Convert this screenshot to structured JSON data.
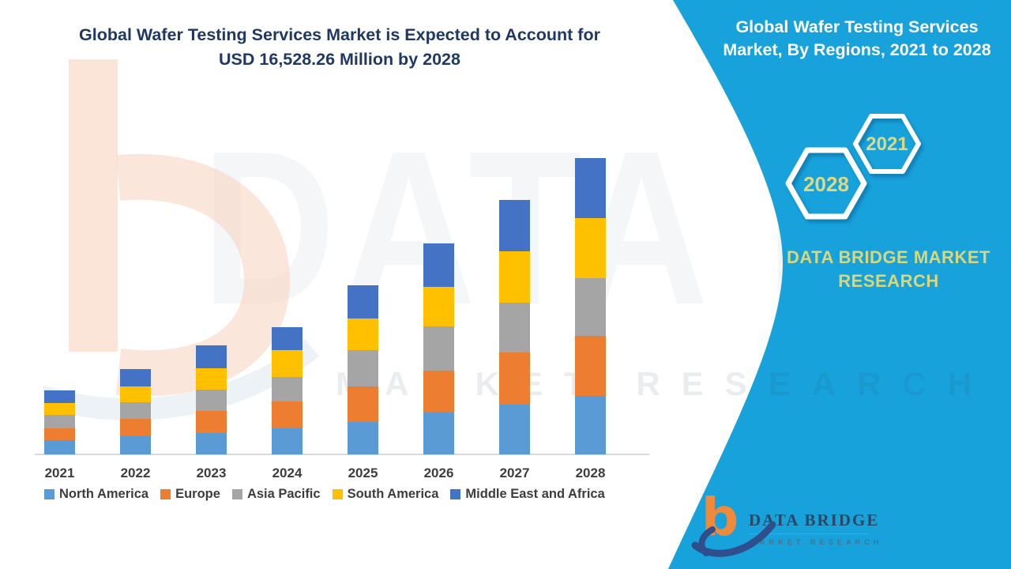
{
  "left_section": {
    "title_line1": "Global Wafer Testing Services  Market is Expected to Account for",
    "title_line2": "USD 16,528.26 Million by 2028"
  },
  "chart_data": {
    "type": "bar",
    "stacked": true,
    "title": "Global Wafer Testing Services Market, By Regions, 2021 to 2028",
    "xlabel": "",
    "ylabel": "",
    "grid": false,
    "legend_position": "bottom",
    "categories": [
      "2021",
      "2022",
      "2023",
      "2024",
      "2025",
      "2026",
      "2027",
      "2028"
    ],
    "series": [
      {
        "name": "North America",
        "color": "#5B9BD5",
        "values": [
          800,
          1020,
          1200,
          1460,
          1815,
          2350,
          2790,
          3280
        ]
      },
      {
        "name": "Europe",
        "color": "#ED7D31",
        "values": [
          660,
          975,
          1240,
          1505,
          1995,
          2305,
          2880,
          3320
        ]
      },
      {
        "name": "Asia Pacific",
        "color": "#A5A5A5",
        "values": [
          750,
          930,
          1195,
          1375,
          1995,
          2480,
          2790,
          3235
        ]
      },
      {
        "name": "South America",
        "color": "#FFC000",
        "values": [
          660,
          885,
          1150,
          1460,
          1770,
          2215,
          2880,
          3325
        ]
      },
      {
        "name": "Middle East and Africa",
        "color": "#4472C4",
        "values": [
          710,
          930,
          1285,
          1285,
          1860,
          2435,
          2835,
          3368.26
        ]
      }
    ],
    "totals_note": "2028 stacked total = 16,528.26 USD Million (stated in title); other segment values estimated from bar heights"
  },
  "panel": {
    "title_line1": "Global Wafer Testing Services",
    "title_line2": "Market, By Regions, 2021 to 2028",
    "hexagon_year_small": "2021",
    "hexagon_year_large": "2028",
    "brand_line1": "DATA BRIDGE MARKET",
    "brand_line2": "RESEARCH",
    "colors": {
      "panel_blue": "#17A2DC",
      "gold_text": "#D9D77B",
      "hexagon_stroke": "#FFFFFF"
    }
  },
  "logo": {
    "glyph": "b",
    "name_text": "DATA BRIDGE",
    "sub_text": "MARKET RESEARCH"
  },
  "watermark": {
    "text_main": "DATA BRIDGE",
    "text_sub": "MARKET RESEARCH"
  }
}
